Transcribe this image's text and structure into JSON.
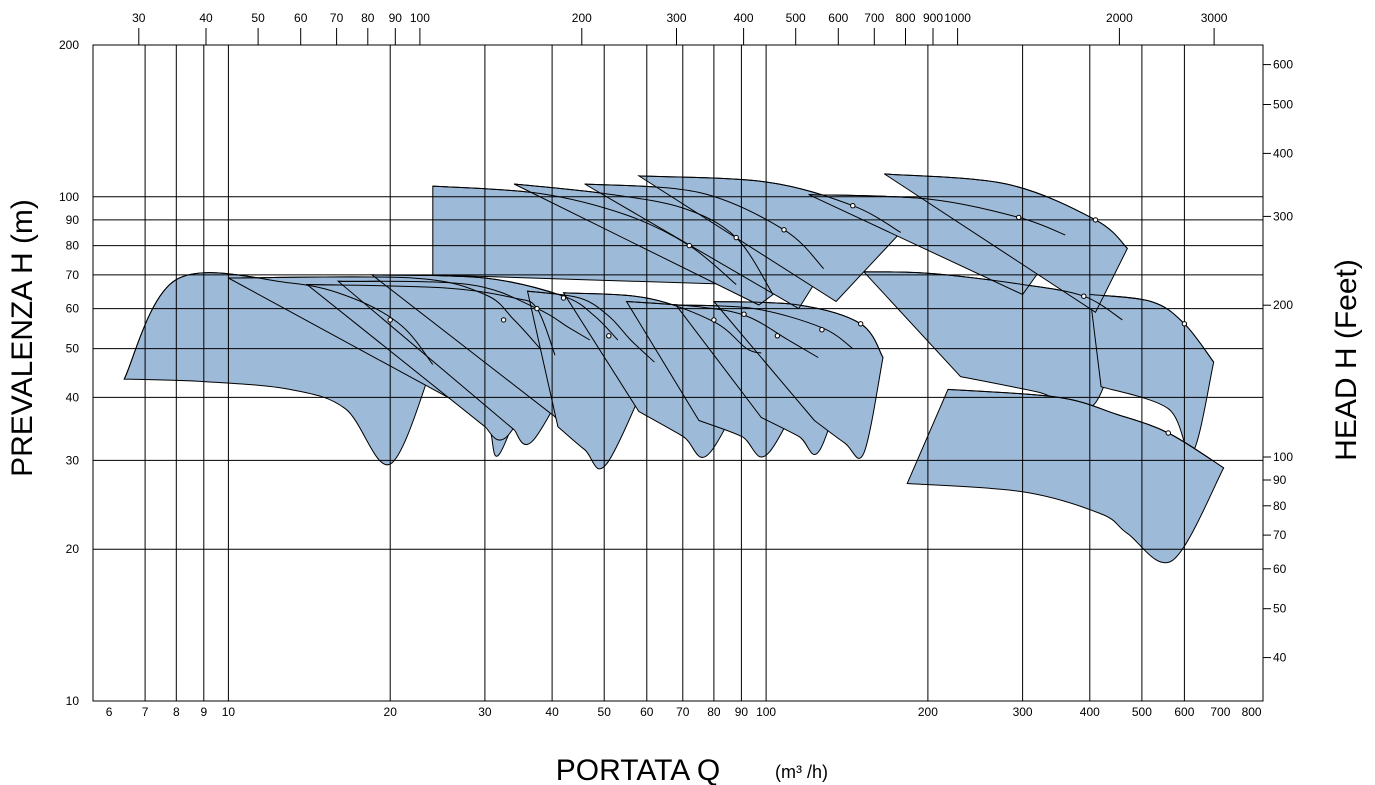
{
  "chart_data": {
    "type": "area",
    "xlabel": "PORTATA  Q",
    "xlabel_unit": "(m³ /h)",
    "ylabel": "PREVALENZA  H (m)",
    "ylabel_right": "HEAD  H (Feet)",
    "x_scale": "log",
    "y_scale": "log",
    "xlim": [
      5.6,
      840
    ],
    "ylim": [
      10,
      200
    ],
    "x_ticks": [
      6,
      7,
      8,
      9,
      10,
      20,
      30,
      40,
      50,
      60,
      70,
      80,
      90,
      100,
      200,
      300,
      400,
      500,
      600,
      700,
      800
    ],
    "x_tick_labels": [
      "6",
      "7",
      "8",
      "9",
      "10",
      "20",
      "30",
      "40",
      "50",
      "60",
      "70",
      "80",
      "90",
      "100",
      "200",
      "300",
      "400",
      "500",
      "600",
      "700",
      "800"
    ],
    "x_gridlines": [
      7,
      8,
      9,
      10,
      20,
      30,
      40,
      50,
      60,
      70,
      80,
      90,
      100,
      200,
      300,
      400,
      500,
      600
    ],
    "y_ticks": [
      10,
      20,
      30,
      40,
      50,
      60,
      70,
      80,
      90,
      100,
      200
    ],
    "y_tick_labels": [
      "10",
      "20",
      "30",
      "40",
      "50",
      "60",
      "70",
      "80",
      "90",
      "100",
      "200"
    ],
    "y_gridlines": [
      20,
      30,
      40,
      50,
      60,
      70,
      80,
      90,
      100
    ],
    "top_axis_unit_factor": 4.403,
    "top_ticks": [
      30,
      40,
      50,
      60,
      70,
      80,
      90,
      100,
      200,
      300,
      400,
      500,
      600,
      700,
      800,
      900,
      1000,
      2000,
      3000
    ],
    "top_tick_labels": [
      "30",
      "40",
      "50",
      "60",
      "70",
      "80",
      "90",
      "100",
      "200",
      "300",
      "400",
      "500",
      "600",
      "700",
      "800",
      "900",
      "1000",
      "2000",
      "3000"
    ],
    "right_axis_unit_factor": 3.281,
    "right_ticks": [
      40,
      50,
      60,
      70,
      80,
      90,
      100,
      200,
      300,
      400,
      500,
      600
    ],
    "right_tick_labels": [
      "40",
      "50",
      "60",
      "70",
      "80",
      "90",
      "100",
      "200",
      "300",
      "400",
      "500",
      "600"
    ],
    "fill_color": "#9dbad8",
    "regions": [
      {
        "top": [
          [
            6.4,
            43.5
          ],
          [
            8.0,
            68.5
          ],
          [
            13.0,
            67.5
          ],
          [
            17.0,
            63.0
          ],
          [
            21.0,
            55.5
          ],
          [
            24.0,
            46.5
          ]
        ],
        "bottom": [
          [
            6.4,
            43.5
          ],
          [
            9.0,
            43.0
          ],
          [
            13.0,
            41.5
          ],
          [
            16.5,
            38.0
          ],
          [
            20.0,
            29.5
          ],
          [
            24.0,
            46.5
          ]
        ],
        "bep": [
          [
            20.0,
            57.0
          ]
        ]
      },
      {
        "top": [
          [
            10.0,
            69.0
          ],
          [
            22.0,
            69.0
          ],
          [
            30.0,
            64.0
          ],
          [
            34.0,
            57.0
          ],
          [
            38.0,
            50.0
          ]
        ],
        "bottom": [
          [
            28.0,
            38.0
          ],
          [
            30.5,
            35.0
          ],
          [
            32.0,
            31.0
          ],
          [
            38.0,
            50.0
          ]
        ],
        "bep": [
          [
            32.5,
            57.0
          ]
        ]
      },
      {
        "top": [
          [
            14.0,
            67.0
          ],
          [
            25.0,
            66.0
          ],
          [
            34.0,
            63.0
          ],
          [
            37.5,
            60.0
          ],
          [
            40.5,
            48.5
          ]
        ],
        "bottom": [
          [
            30.0,
            35.0
          ],
          [
            33.0,
            33.5
          ],
          [
            40.5,
            48.5
          ]
        ],
        "bep": []
      },
      {
        "top": [
          [
            16.0,
            68.0
          ],
          [
            28.0,
            67.0
          ],
          [
            37.5,
            60.0
          ],
          [
            43.0,
            55.0
          ],
          [
            47.0,
            52.0
          ]
        ],
        "bottom": [
          [
            34.0,
            34.5
          ],
          [
            37.0,
            33.0
          ],
          [
            47.0,
            52.0
          ]
        ],
        "bep": [
          [
            37.5,
            60.0
          ]
        ]
      },
      {
        "top": [
          [
            18.5,
            70.0
          ],
          [
            30.0,
            69.0
          ],
          [
            42.0,
            63.5
          ],
          [
            48.0,
            58.0
          ],
          [
            53.0,
            52.0
          ]
        ],
        "bottom": [
          [
            40.0,
            37.0
          ],
          [
            44.0,
            36.0
          ],
          [
            53.0,
            52.0
          ]
        ],
        "bep": [
          [
            42.0,
            63.0
          ]
        ]
      },
      {
        "top": [
          [
            36.0,
            65.0
          ],
          [
            45.0,
            63.0
          ],
          [
            51.0,
            58.0
          ],
          [
            56.0,
            52.0
          ],
          [
            62.0,
            47.0
          ]
        ],
        "bottom": [
          [
            41.0,
            35.0
          ],
          [
            46.0,
            31.5
          ],
          [
            50.5,
            29.5
          ],
          [
            62.0,
            47.0
          ]
        ],
        "bep": [
          [
            51.0,
            53.0
          ]
        ]
      },
      {
        "top": [
          [
            42.0,
            64.5
          ],
          [
            60.0,
            63.0
          ],
          [
            80.0,
            56.5
          ],
          [
            92.0,
            50.0
          ],
          [
            98.0,
            49.0
          ]
        ],
        "bottom": [
          [
            58.0,
            37.5
          ],
          [
            70.0,
            33.5
          ],
          [
            78.5,
            31.0
          ],
          [
            98.0,
            49.0
          ]
        ],
        "bep": [
          [
            80.0,
            57.0
          ]
        ]
      },
      {
        "top": [
          [
            55.0,
            62.0
          ],
          [
            75.0,
            60.5
          ],
          [
            92.0,
            58.0
          ],
          [
            110.0,
            52.0
          ],
          [
            125.0,
            48.0
          ]
        ],
        "bottom": [
          [
            75.0,
            36.0
          ],
          [
            90.0,
            33.5
          ],
          [
            101.0,
            31.0
          ],
          [
            125.0,
            48.0
          ]
        ],
        "bep": [
          [
            91.0,
            58.5
          ],
          [
            105.0,
            53.0
          ]
        ]
      },
      {
        "top": [
          [
            68.0,
            61.0
          ],
          [
            95.0,
            60.0
          ],
          [
            127.0,
            55.0
          ],
          [
            145.0,
            50.0
          ]
        ],
        "bottom": [
          [
            98.0,
            36.5
          ],
          [
            115.0,
            33.5
          ],
          [
            126.0,
            31.5
          ],
          [
            145.0,
            50.0
          ]
        ],
        "bep": [
          [
            127.0,
            54.5
          ]
        ]
      },
      {
        "top": [
          [
            80.0,
            62.0
          ],
          [
            115.0,
            61.0
          ],
          [
            150.0,
            56.0
          ],
          [
            165.0,
            48.0
          ]
        ],
        "bottom": [
          [
            123.0,
            36.0
          ],
          [
            140.0,
            32.5
          ],
          [
            152.0,
            31.0
          ],
          [
            165.0,
            48.0
          ]
        ],
        "bep": [
          [
            150.0,
            56.0
          ]
        ]
      },
      {
        "top": [
          [
            152.0,
            71.0
          ],
          [
            200.0,
            70.5
          ],
          [
            300.0,
            67.0
          ],
          [
            390.0,
            63.5
          ],
          [
            460.0,
            57.0
          ]
        ],
        "bottom": [
          [
            230.0,
            44.0
          ],
          [
            320.0,
            41.0
          ],
          [
            405.0,
            38.5
          ],
          [
            460.0,
            57.0
          ]
        ],
        "bep": [
          [
            390.0,
            63.5
          ]
        ]
      },
      {
        "top": [
          [
            400.0,
            64.0
          ],
          [
            520.0,
            62.0
          ],
          [
            600.0,
            56.0
          ],
          [
            680.0,
            47.0
          ]
        ],
        "bottom": [
          [
            420.0,
            42.0
          ],
          [
            560.0,
            38.0
          ],
          [
            620.0,
            31.0
          ],
          [
            680.0,
            47.0
          ]
        ],
        "bep": [
          [
            600.0,
            56.0
          ]
        ]
      },
      {
        "top": [
          [
            218.0,
            41.5
          ],
          [
            350.0,
            40.0
          ],
          [
            450.0,
            37.0
          ],
          [
            560.0,
            34.0
          ],
          [
            710.0,
            29.0
          ]
        ],
        "bottom": [
          [
            183.0,
            27.0
          ],
          [
            300.0,
            26.0
          ],
          [
            420.0,
            23.5
          ],
          [
            470.0,
            21.5
          ],
          [
            570.0,
            19.0
          ],
          [
            710.0,
            29.0
          ]
        ],
        "bep": [
          [
            560.0,
            34.0
          ]
        ]
      },
      {
        "top": [
          [
            24.0,
            105.0
          ],
          [
            38.0,
            101.5
          ],
          [
            55.0,
            92.0
          ],
          [
            72.0,
            80.0
          ],
          [
            88.0,
            67.0
          ]
        ],
        "bottom": [
          [
            24.0,
            70.0
          ],
          [
            88.0,
            67.0
          ]
        ],
        "bep": [
          [
            72.0,
            80.0
          ]
        ]
      },
      {
        "top": [
          [
            34.0,
            106.0
          ],
          [
            50.0,
            101.5
          ],
          [
            70.0,
            95.0
          ],
          [
            88.0,
            83.0
          ],
          [
            103.0,
            64.0
          ]
        ],
        "bottom": [
          [
            97.0,
            61.0
          ],
          [
            103.0,
            64.0
          ]
        ],
        "bep": [
          [
            88.0,
            83.0
          ]
        ]
      },
      {
        "top": [
          [
            46.0,
            106.0
          ],
          [
            75.0,
            102.0
          ],
          [
            108.0,
            86.0
          ],
          [
            128.0,
            72.0
          ]
        ],
        "bottom": [
          [
            115.0,
            60.0
          ],
          [
            128.0,
            72.0
          ]
        ],
        "bep": [
          [
            108.0,
            86.0
          ]
        ]
      },
      {
        "top": [
          [
            58.0,
            110.0
          ],
          [
            100.0,
            107.0
          ],
          [
            145.0,
            96.0
          ],
          [
            178.0,
            85.0
          ]
        ],
        "bottom": [
          [
            135.0,
            62.0
          ],
          [
            178.0,
            85.0
          ]
        ],
        "bep": [
          [
            145.0,
            96.0
          ]
        ]
      },
      {
        "top": [
          [
            120.0,
            101.0
          ],
          [
            200.0,
            99.0
          ],
          [
            295.0,
            91.0
          ],
          [
            360.0,
            84.0
          ]
        ],
        "bottom": [
          [
            300.0,
            64.0
          ],
          [
            360.0,
            84.0
          ]
        ],
        "bep": [
          [
            295.0,
            91.0
          ]
        ]
      },
      {
        "top": [
          [
            166.0,
            111.0
          ],
          [
            280.0,
            106.0
          ],
          [
            410.0,
            90.0
          ],
          [
            470.0,
            79.0
          ]
        ],
        "bottom": [
          [
            410.0,
            59.0
          ],
          [
            470.0,
            79.0
          ]
        ],
        "bep": [
          [
            410.0,
            90.0
          ]
        ]
      }
    ]
  }
}
